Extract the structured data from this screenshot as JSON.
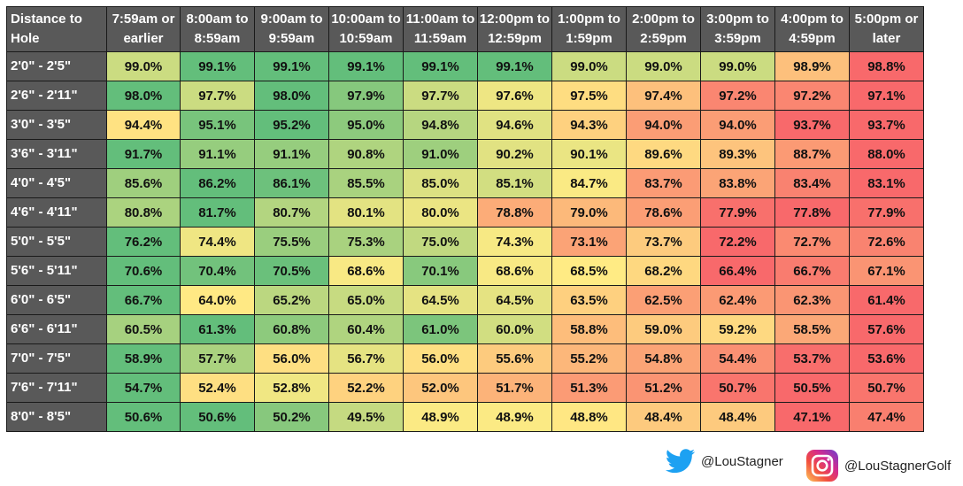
{
  "chart_data": {
    "type": "heatmap",
    "corner_label": "Distance to Hole",
    "columns": [
      "7:59am or earlier",
      "8:00am to 8:59am",
      "9:00am to 9:59am",
      "10:00am to 10:59am",
      "11:00am to 11:59am",
      "12:00pm to 12:59pm",
      "1:00pm to 1:59pm",
      "2:00pm to 2:59pm",
      "3:00pm to 3:59pm",
      "4:00pm to 4:59pm",
      "5:00pm or later"
    ],
    "rows": [
      {
        "label": "2'0\" - 2'5\"",
        "values": [
          99.0,
          99.1,
          99.1,
          99.1,
          99.1,
          99.1,
          99.0,
          99.0,
          99.0,
          98.9,
          98.8
        ]
      },
      {
        "label": "2'6\" - 2'11\"",
        "values": [
          98.0,
          97.7,
          98.0,
          97.9,
          97.7,
          97.6,
          97.5,
          97.4,
          97.2,
          97.2,
          97.1
        ]
      },
      {
        "label": "3'0\" - 3'5\"",
        "values": [
          94.4,
          95.1,
          95.2,
          95.0,
          94.8,
          94.6,
          94.3,
          94.0,
          94.0,
          93.7,
          93.7
        ]
      },
      {
        "label": "3'6\" - 3'11\"",
        "values": [
          91.7,
          91.1,
          91.1,
          90.8,
          91.0,
          90.2,
          90.1,
          89.6,
          89.3,
          88.7,
          88.0
        ]
      },
      {
        "label": "4'0\" - 4'5\"",
        "values": [
          85.6,
          86.2,
          86.1,
          85.5,
          85.0,
          85.1,
          84.7,
          83.7,
          83.8,
          83.4,
          83.1
        ]
      },
      {
        "label": "4'6\" - 4'11\"",
        "values": [
          80.8,
          81.7,
          80.7,
          80.1,
          80.0,
          78.8,
          79.0,
          78.6,
          77.9,
          77.8,
          77.9
        ]
      },
      {
        "label": "5'0\" - 5'5\"",
        "values": [
          76.2,
          74.4,
          75.5,
          75.3,
          75.0,
          74.3,
          73.1,
          73.7,
          72.2,
          72.7,
          72.6
        ]
      },
      {
        "label": "5'6\" - 5'11\"",
        "values": [
          70.6,
          70.4,
          70.5,
          68.6,
          70.1,
          68.6,
          68.5,
          68.2,
          66.4,
          66.7,
          67.1
        ]
      },
      {
        "label": "6'0\" - 6'5\"",
        "values": [
          66.7,
          64.0,
          65.2,
          65.0,
          64.5,
          64.5,
          63.5,
          62.5,
          62.4,
          62.3,
          61.4
        ]
      },
      {
        "label": "6'6\" - 6'11\"",
        "values": [
          60.5,
          61.3,
          60.8,
          60.4,
          61.0,
          60.0,
          58.8,
          59.0,
          59.2,
          58.5,
          57.6
        ]
      },
      {
        "label": "7'0\" - 7'5\"",
        "values": [
          58.9,
          57.7,
          56.0,
          56.7,
          56.0,
          55.6,
          55.2,
          54.8,
          54.4,
          53.7,
          53.6
        ]
      },
      {
        "label": "7'6\" - 7'11\"",
        "values": [
          54.7,
          52.4,
          52.8,
          52.2,
          52.0,
          51.7,
          51.3,
          51.2,
          50.7,
          50.5,
          50.7
        ]
      },
      {
        "label": "8'0\" - 8'5\"",
        "values": [
          50.6,
          50.6,
          50.2,
          49.5,
          48.9,
          48.9,
          48.8,
          48.4,
          48.4,
          47.1,
          47.4
        ]
      }
    ],
    "value_suffix": "%",
    "color_scale": {
      "low": "#f8696b",
      "mid": "#ffeb84",
      "high": "#63be7b",
      "per": "row"
    }
  },
  "footer": {
    "twitter_handle": "@LouStagner",
    "instagram_handle": "@LouStagnerGolf",
    "twitter_icon": "twitter-bird-icon",
    "instagram_icon": "instagram-icon",
    "twitter_color": "#1da1f2"
  }
}
